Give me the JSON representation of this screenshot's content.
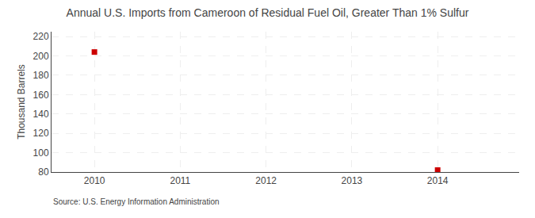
{
  "chart_data": {
    "type": "scatter",
    "title": "Annual U.S. Imports from Cameroon of Residual Fuel Oil, Greater Than 1% Sulfur",
    "ylabel": "Thousand Barrels",
    "source": "Source: U.S. Energy Information Administration",
    "x": [
      2010,
      2014
    ],
    "values": [
      204,
      82
    ],
    "color": "#cc0000",
    "marker": "square",
    "xlim": [
      2009.5,
      2014.95
    ],
    "ylim": [
      80,
      225
    ],
    "xticks": [
      2010,
      2011,
      2012,
      2013,
      2014
    ],
    "yticks": [
      80,
      100,
      120,
      140,
      160,
      180,
      200,
      220
    ],
    "grid": true
  }
}
